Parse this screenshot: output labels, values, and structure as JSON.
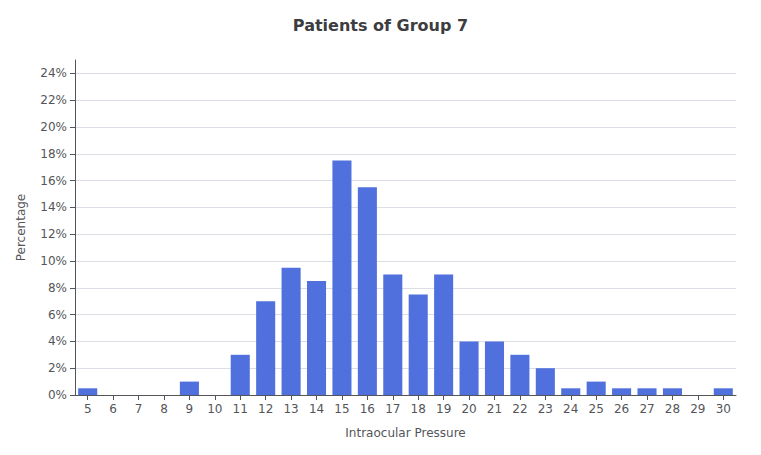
{
  "chart_data": {
    "type": "bar",
    "title": "Patients of Group 7",
    "xlabel": "Intraocular Pressure",
    "ylabel": "Percentage",
    "x": [
      5,
      6,
      7,
      8,
      9,
      10,
      11,
      12,
      13,
      14,
      15,
      16,
      17,
      18,
      19,
      20,
      21,
      22,
      23,
      24,
      25,
      26,
      27,
      28,
      29,
      30
    ],
    "values": [
      0.5,
      0.0,
      0.0,
      0.0,
      1.0,
      0.0,
      3.0,
      7.0,
      9.5,
      8.5,
      17.5,
      15.5,
      9.0,
      7.5,
      9.0,
      4.0,
      4.0,
      3.0,
      2.0,
      0.5,
      1.0,
      0.5,
      0.5,
      0.5,
      0.0,
      0.5
    ],
    "xlim": [
      4.5,
      30.5
    ],
    "xticks": [
      5,
      6,
      7,
      8,
      9,
      10,
      11,
      12,
      13,
      14,
      15,
      16,
      17,
      18,
      19,
      20,
      21,
      22,
      23,
      24,
      25,
      26,
      27,
      28,
      29,
      30
    ],
    "ylim": [
      0,
      25
    ],
    "yticks": [
      {
        "value": 0,
        "label": "0%"
      },
      {
        "value": 2,
        "label": "2%"
      },
      {
        "value": 4,
        "label": "4%"
      },
      {
        "value": 6,
        "label": "6%"
      },
      {
        "value": 8,
        "label": "8%"
      },
      {
        "value": 10,
        "label": "10%"
      },
      {
        "value": 12,
        "label": "12%"
      },
      {
        "value": 14,
        "label": "14%"
      },
      {
        "value": 16,
        "label": "16%"
      },
      {
        "value": 18,
        "label": "18%"
      },
      {
        "value": 20,
        "label": "20%"
      },
      {
        "value": 22,
        "label": "22%"
      },
      {
        "value": 24,
        "label": "24%"
      }
    ],
    "grid": true
  }
}
